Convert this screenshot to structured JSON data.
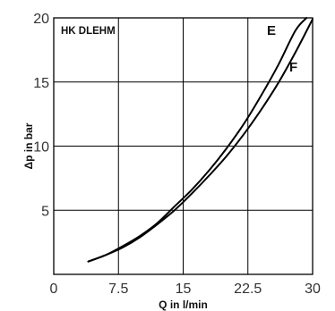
{
  "chart_data": {
    "type": "line",
    "title": "HK DLEHM",
    "xlabel": "Q in l/min",
    "ylabel": "Δp in bar",
    "xlim": [
      0,
      30
    ],
    "ylim": [
      0,
      20
    ],
    "x_ticks": [
      "0",
      "7.5",
      "15",
      "22.5",
      "30"
    ],
    "y_ticks": [
      "5",
      "10",
      "15",
      "20"
    ],
    "grid": true,
    "series": [
      {
        "name": "E",
        "x": [
          4,
          6,
          8,
          10,
          12,
          14,
          16,
          18,
          20,
          22,
          24,
          26,
          28,
          29.3
        ],
        "y": [
          1.0,
          1.5,
          2.2,
          3.0,
          4.0,
          5.3,
          6.6,
          8.1,
          9.8,
          11.7,
          13.9,
          16.3,
          19.0,
          20.0
        ]
      },
      {
        "name": "F",
        "x": [
          4,
          6,
          8,
          10,
          12,
          14,
          16,
          18,
          20,
          22,
          24,
          26,
          28,
          30
        ],
        "y": [
          1.0,
          1.5,
          2.1,
          2.9,
          3.9,
          5.0,
          6.3,
          7.7,
          9.2,
          10.9,
          12.8,
          14.9,
          17.3,
          19.9
        ]
      }
    ]
  }
}
